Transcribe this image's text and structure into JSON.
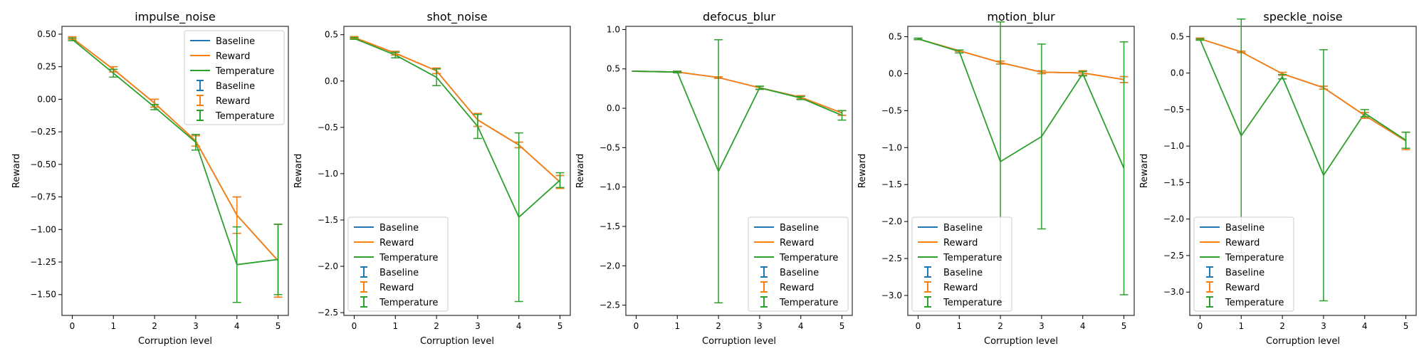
{
  "chart_data": [
    {
      "type": "line",
      "title": "impulse_noise",
      "xlabel": "Corruption level",
      "ylabel": "Reward",
      "x": [
        0,
        1,
        2,
        3,
        4,
        5
      ],
      "xlim": [
        -0.25,
        5.25
      ],
      "ylim": [
        -1.66,
        0.56
      ],
      "yticks": [
        0.5,
        0.25,
        0.0,
        -0.25,
        -0.5,
        -0.75,
        -1.0,
        -1.25,
        -1.5
      ],
      "ytick_labels": [
        "0.50",
        "0.25",
        "0.00",
        "−0.25",
        "−0.50",
        "−0.75",
        "−1.00",
        "−1.25",
        "−1.50"
      ],
      "legend_loc": "upper right",
      "series": [
        {
          "name": "Baseline",
          "color": "#1f77b4",
          "values": [
            0.47,
            0.23,
            -0.03,
            -0.32,
            -0.89,
            -1.24
          ],
          "err": [
            0.01,
            0.02,
            0.03,
            0.04,
            0.14,
            0.28
          ]
        },
        {
          "name": "Reward",
          "color": "#ff7f0e",
          "values": [
            0.47,
            0.23,
            -0.03,
            -0.32,
            -0.89,
            -1.24
          ],
          "err": [
            0.01,
            0.02,
            0.03,
            0.04,
            0.14,
            0.28
          ]
        },
        {
          "name": "Temperature",
          "color": "#2ca02c",
          "values": [
            0.46,
            0.2,
            -0.06,
            -0.33,
            -1.27,
            -1.23
          ],
          "err": [
            0.01,
            0.03,
            0.02,
            0.06,
            0.29,
            0.27
          ]
        }
      ]
    },
    {
      "type": "line",
      "title": "shot_noise",
      "xlabel": "Corruption level",
      "ylabel": "Reward",
      "x": [
        0,
        1,
        2,
        3,
        4,
        5
      ],
      "xlim": [
        -0.25,
        5.25
      ],
      "ylim": [
        -2.53,
        0.59
      ],
      "yticks": [
        0.5,
        0.0,
        -0.5,
        -1.0,
        -1.5,
        -2.0,
        -2.5
      ],
      "ytick_labels": [
        "0.5",
        "0.0",
        "−0.5",
        "−1.0",
        "−1.5",
        "−2.0",
        "−2.5"
      ],
      "legend_loc": "lower left",
      "series": [
        {
          "name": "Baseline",
          "color": "#1f77b4",
          "values": [
            0.47,
            0.3,
            0.11,
            -0.42,
            -0.69,
            -1.09
          ],
          "err": [
            0.01,
            0.02,
            0.03,
            0.07,
            0.03,
            0.07
          ]
        },
        {
          "name": "Reward",
          "color": "#ff7f0e",
          "values": [
            0.47,
            0.3,
            0.11,
            -0.42,
            -0.69,
            -1.09
          ],
          "err": [
            0.01,
            0.02,
            0.03,
            0.07,
            0.03,
            0.07
          ]
        },
        {
          "name": "Temperature",
          "color": "#2ca02c",
          "values": [
            0.46,
            0.28,
            0.04,
            -0.49,
            -1.47,
            -1.07
          ],
          "err": [
            0.01,
            0.03,
            0.09,
            0.13,
            0.91,
            0.08
          ]
        }
      ]
    },
    {
      "type": "line",
      "title": "defocus_blur",
      "xlabel": "Corruption level",
      "ylabel": "Reward",
      "x": [
        0,
        1,
        2,
        3,
        4,
        5
      ],
      "xlim": [
        -0.25,
        5.25
      ],
      "ylim": [
        -2.63,
        1.04
      ],
      "yticks": [
        1.0,
        0.5,
        0.0,
        -0.5,
        -1.0,
        -1.5,
        -2.0,
        -2.5
      ],
      "ytick_labels": [
        "1.0",
        "0.5",
        "0.0",
        "−0.5",
        "−1.0",
        "−1.5",
        "−2.0",
        "−2.5"
      ],
      "legend_loc": "lower right",
      "series": [
        {
          "name": "Baseline",
          "color": "#1f77b4",
          "values": [
            0.47,
            0.46,
            0.39,
            0.26,
            0.14,
            -0.06
          ],
          "err": [
            0.0,
            0.01,
            0.01,
            0.02,
            0.02,
            0.03
          ]
        },
        {
          "name": "Reward",
          "color": "#ff7f0e",
          "values": [
            0.47,
            0.46,
            0.39,
            0.26,
            0.14,
            -0.06
          ],
          "err": [
            0.0,
            0.01,
            0.01,
            0.02,
            0.02,
            0.03
          ]
        },
        {
          "name": "Temperature",
          "color": "#2ca02c",
          "values": [
            0.47,
            0.46,
            -0.8,
            0.26,
            0.13,
            -0.09
          ],
          "err": [
            0.0,
            0.01,
            1.67,
            0.02,
            0.02,
            0.06
          ]
        }
      ]
    },
    {
      "type": "line",
      "title": "motion_blur",
      "xlabel": "Corruption level",
      "ylabel": "Reward",
      "x": [
        0,
        1,
        2,
        3,
        4,
        5
      ],
      "xlim": [
        -0.25,
        5.25
      ],
      "ylim": [
        -3.27,
        0.64
      ],
      "yticks": [
        0.5,
        0.0,
        -0.5,
        -1.0,
        -1.5,
        -2.0,
        -2.5,
        -3.0
      ],
      "ytick_labels": [
        "0.5",
        "0.0",
        "−0.5",
        "−1.0",
        "−1.5",
        "−2.0",
        "−2.5",
        "−3.0"
      ],
      "legend_loc": "lower left",
      "series": [
        {
          "name": "Baseline",
          "color": "#1f77b4",
          "values": [
            0.47,
            0.31,
            0.15,
            0.02,
            0.01,
            -0.08
          ],
          "err": [
            0.01,
            0.01,
            0.02,
            0.02,
            0.03,
            0.04
          ]
        },
        {
          "name": "Reward",
          "color": "#ff7f0e",
          "values": [
            0.47,
            0.31,
            0.15,
            0.02,
            0.01,
            -0.08
          ],
          "err": [
            0.01,
            0.01,
            0.02,
            0.02,
            0.03,
            0.04
          ]
        },
        {
          "name": "Temperature",
          "color": "#2ca02c",
          "values": [
            0.47,
            0.3,
            -1.19,
            -0.85,
            0.0,
            -1.28
          ],
          "err": [
            0.01,
            0.02,
            1.89,
            1.25,
            0.03,
            1.71
          ]
        }
      ]
    },
    {
      "type": "line",
      "title": "speckle_noise",
      "xlabel": "Corruption level",
      "ylabel": "Reward",
      "x": [
        0,
        1,
        2,
        3,
        4,
        5
      ],
      "xlim": [
        -0.25,
        5.25
      ],
      "ylim": [
        -3.32,
        0.64
      ],
      "yticks": [
        0.5,
        0.0,
        -0.5,
        -1.0,
        -1.5,
        -2.0,
        -2.5,
        -3.0
      ],
      "ytick_labels": [
        "0.5",
        "0.0",
        "−0.5",
        "−1.0",
        "−1.5",
        "−2.0",
        "−2.5",
        "−3.0"
      ],
      "legend_loc": "lower left",
      "series": [
        {
          "name": "Baseline",
          "color": "#1f77b4",
          "values": [
            0.47,
            0.29,
            -0.01,
            -0.2,
            -0.58,
            -0.93
          ],
          "err": [
            0.01,
            0.01,
            0.02,
            0.02,
            0.04,
            0.12
          ]
        },
        {
          "name": "Reward",
          "color": "#ff7f0e",
          "values": [
            0.47,
            0.29,
            -0.01,
            -0.2,
            -0.58,
            -0.93
          ],
          "err": [
            0.01,
            0.01,
            0.02,
            0.02,
            0.04,
            0.12
          ]
        },
        {
          "name": "Temperature",
          "color": "#2ca02c",
          "values": [
            0.46,
            -0.86,
            -0.05,
            -1.4,
            -0.55,
            -0.92
          ],
          "err": [
            0.01,
            1.6,
            0.03,
            1.72,
            0.05,
            0.11
          ]
        }
      ]
    }
  ]
}
